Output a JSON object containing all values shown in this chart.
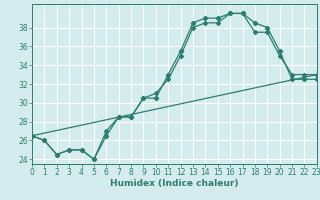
{
  "xlabel": "Humidex (Indice chaleur)",
  "bg_color": "#d4ecee",
  "grid_color": "#ffffff",
  "line_color": "#2d7d6e",
  "xlim": [
    0,
    23
  ],
  "ylim": [
    23.5,
    40.5
  ],
  "xticks": [
    0,
    1,
    2,
    3,
    4,
    5,
    6,
    7,
    8,
    9,
    10,
    11,
    12,
    13,
    14,
    15,
    16,
    17,
    18,
    19,
    20,
    21,
    22,
    23
  ],
  "yticks": [
    24,
    26,
    28,
    30,
    32,
    34,
    36,
    38
  ],
  "line1_x": [
    0,
    1,
    2,
    3,
    4,
    5,
    6,
    7,
    8,
    9,
    10,
    11,
    12,
    13,
    14,
    15,
    16,
    17,
    18,
    19,
    20,
    21,
    22,
    23
  ],
  "line1_y": [
    26.5,
    26.0,
    24.5,
    25.0,
    25.0,
    24.0,
    26.5,
    28.5,
    28.5,
    30.5,
    30.5,
    33.0,
    35.5,
    38.5,
    39.0,
    39.0,
    39.5,
    39.5,
    38.5,
    38.0,
    35.5,
    32.5,
    32.5,
    32.5
  ],
  "line2_x": [
    0,
    1,
    2,
    3,
    4,
    5,
    6,
    7,
    8,
    9,
    10,
    11,
    12,
    13,
    14,
    15,
    16,
    17,
    18,
    19,
    20,
    21,
    22,
    23
  ],
  "line2_y": [
    26.5,
    26.0,
    24.5,
    25.0,
    25.0,
    24.0,
    27.0,
    28.5,
    28.5,
    30.5,
    31.0,
    32.5,
    35.0,
    38.0,
    38.5,
    38.5,
    39.5,
    39.5,
    37.5,
    37.5,
    35.0,
    33.0,
    33.0,
    33.0
  ],
  "line3_x": [
    0,
    23
  ],
  "line3_y": [
    26.5,
    33.0
  ],
  "tick_fontsize": 5.5,
  "label_fontsize": 6.5
}
